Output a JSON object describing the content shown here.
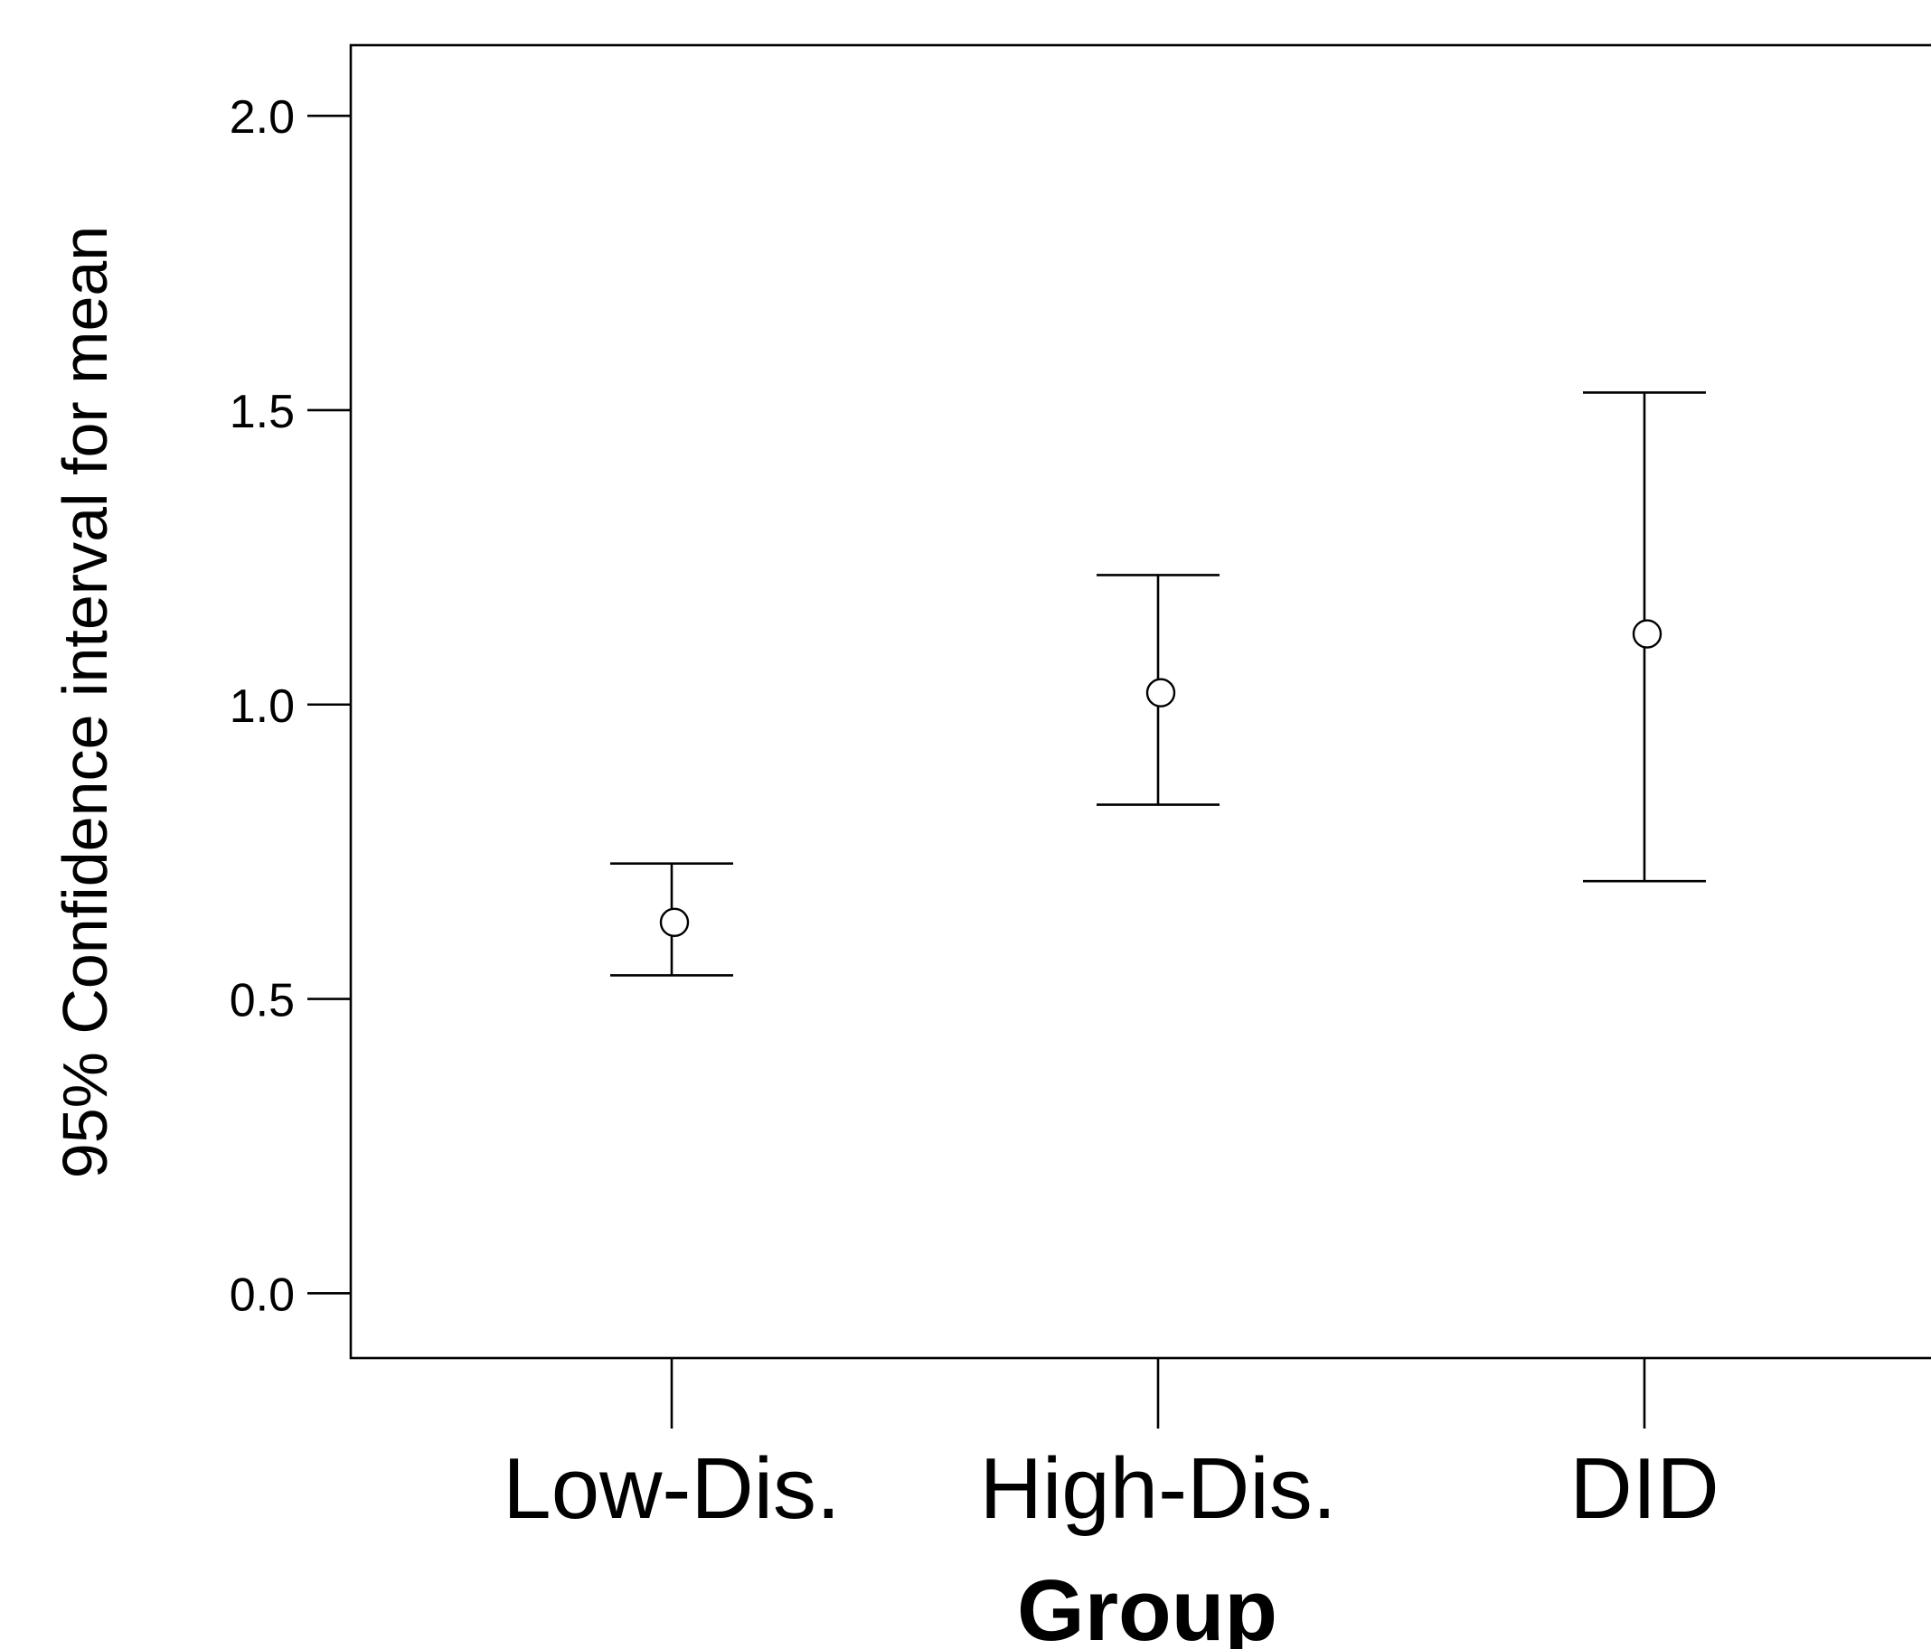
{
  "chart_data": {
    "type": "errorbar",
    "title": "",
    "xlabel": "Group",
    "ylabel": "95% Confidence interval for mean",
    "ylim": [
      -0.11,
      2.12
    ],
    "yticks": [
      "0.0",
      "0.5",
      "1.0",
      "1.5",
      "2.0"
    ],
    "ytick_values": [
      0.0,
      0.5,
      1.0,
      1.5,
      2.0
    ],
    "grid": false,
    "categories": [
      "Low-Dis.",
      "High-Dis.",
      "DID"
    ],
    "series": [
      {
        "means": [
          0.63,
          1.02,
          1.12
        ],
        "lower": [
          0.54,
          0.83,
          0.7
        ],
        "upper": [
          0.73,
          1.22,
          1.53
        ]
      }
    ]
  }
}
